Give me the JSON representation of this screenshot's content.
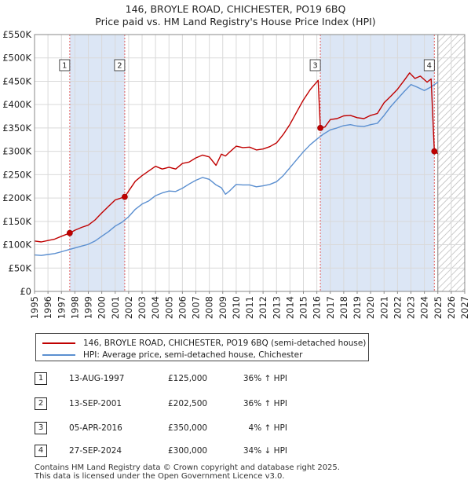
{
  "title_line1": "146, BROYLE ROAD, CHICHESTER, PO19 6BQ",
  "title_line2": "Price paid vs. HM Land Registry's House Price Index (HPI)",
  "colors": {
    "property": "#c00000",
    "hpi": "#5b8fd0",
    "shade": "#dce6f5",
    "grid": "#d9d9d9"
  },
  "chart_data": {
    "type": "line",
    "xlim": [
      1995,
      2027
    ],
    "ylim": [
      0,
      550000
    ],
    "x_ticks": [
      "1995",
      "1996",
      "1997",
      "1998",
      "1999",
      "2000",
      "2001",
      "2002",
      "2003",
      "2004",
      "2005",
      "2006",
      "2007",
      "2008",
      "2009",
      "2010",
      "2011",
      "2012",
      "2013",
      "2014",
      "2015",
      "2016",
      "2017",
      "2018",
      "2019",
      "2020",
      "2021",
      "2022",
      "2023",
      "2024",
      "2025",
      "2026",
      "2027"
    ],
    "y_ticks": [
      {
        "value": 0,
        "label": "£0"
      },
      {
        "value": 50000,
        "label": "£50K"
      },
      {
        "value": 100000,
        "label": "£100K"
      },
      {
        "value": 150000,
        "label": "£150K"
      },
      {
        "value": 200000,
        "label": "£200K"
      },
      {
        "value": 250000,
        "label": "£250K"
      },
      {
        "value": 300000,
        "label": "£300K"
      },
      {
        "value": 350000,
        "label": "£350K"
      },
      {
        "value": 400000,
        "label": "£400K"
      },
      {
        "value": 450000,
        "label": "£450K"
      },
      {
        "value": 500000,
        "label": "£500K"
      },
      {
        "value": 550000,
        "label": "£550K"
      }
    ],
    "forecast_start": 2025.0,
    "series": [
      {
        "name": "146, BROYLE ROAD, CHICHESTER, PO19 6BQ (semi-detached house)",
        "x": [
          1995.0,
          1995.5,
          1996.0,
          1996.5,
          1997.0,
          1997.62,
          1998.0,
          1998.5,
          1999.0,
          1999.5,
          2000.0,
          2000.5,
          2001.0,
          2001.71,
          2002.0,
          2002.5,
          2003.0,
          2003.5,
          2004.0,
          2004.5,
          2005.0,
          2005.5,
          2006.0,
          2006.5,
          2007.0,
          2007.5,
          2008.0,
          2008.5,
          2008.9,
          2009.2,
          2009.5,
          2010.0,
          2010.5,
          2011.0,
          2011.5,
          2012.0,
          2012.5,
          2013.0,
          2013.5,
          2014.0,
          2014.5,
          2015.0,
          2015.5,
          2016.1,
          2016.26,
          2016.6,
          2017.0,
          2017.5,
          2018.0,
          2018.5,
          2019.0,
          2019.5,
          2020.0,
          2020.5,
          2021.0,
          2021.5,
          2022.0,
          2022.5,
          2022.9,
          2023.3,
          2023.7,
          2024.2,
          2024.5,
          2024.74,
          2025.0
        ],
        "y": [
          108000,
          106000,
          109000,
          112000,
          118000,
          125000,
          131000,
          137000,
          142000,
          153000,
          168000,
          182000,
          196000,
          202500,
          215000,
          236000,
          248000,
          258000,
          268000,
          262000,
          266000,
          262000,
          274000,
          277000,
          286000,
          292000,
          288000,
          270000,
          294000,
          290000,
          298000,
          311000,
          308000,
          309000,
          303000,
          305000,
          310000,
          318000,
          336000,
          358000,
          384000,
          410000,
          432000,
          452000,
          350000,
          352000,
          368000,
          370000,
          376000,
          377000,
          372000,
          370000,
          377000,
          381000,
          404000,
          418000,
          433000,
          452000,
          468000,
          456000,
          461000,
          448000,
          455000,
          300000,
          295000
        ]
      },
      {
        "name": "HPI: Average price, semi-detached house, Chichester",
        "x": [
          1995.0,
          1995.5,
          1996.0,
          1996.5,
          1997.0,
          1997.5,
          1998.0,
          1998.5,
          1999.0,
          1999.5,
          2000.0,
          2000.5,
          2001.0,
          2001.5,
          2002.0,
          2002.5,
          2003.0,
          2003.5,
          2004.0,
          2004.5,
          2005.0,
          2005.5,
          2006.0,
          2006.5,
          2007.0,
          2007.5,
          2008.0,
          2008.5,
          2008.9,
          2009.2,
          2009.5,
          2010.0,
          2010.5,
          2011.0,
          2011.5,
          2012.0,
          2012.5,
          2013.0,
          2013.5,
          2014.0,
          2014.5,
          2015.0,
          2015.5,
          2016.0,
          2016.5,
          2017.0,
          2017.5,
          2018.0,
          2018.5,
          2019.0,
          2019.5,
          2020.0,
          2020.5,
          2021.0,
          2021.5,
          2022.0,
          2022.5,
          2023.0,
          2023.5,
          2024.0,
          2024.5,
          2025.0
        ],
        "y": [
          78000,
          77000,
          79000,
          81000,
          85000,
          89000,
          93000,
          97000,
          101000,
          108000,
          118000,
          128000,
          140000,
          148000,
          160000,
          176000,
          187000,
          194000,
          205000,
          211000,
          215000,
          214000,
          221000,
          230000,
          238000,
          244000,
          240000,
          228000,
          222000,
          208000,
          215000,
          229000,
          228000,
          228000,
          224000,
          226000,
          229000,
          235000,
          248000,
          265000,
          282000,
          299000,
          314000,
          326000,
          337000,
          346000,
          350000,
          355000,
          357000,
          354000,
          353000,
          357000,
          360000,
          377000,
          396000,
          412000,
          428000,
          443000,
          437000,
          430000,
          438000,
          448000
        ]
      }
    ],
    "sales": [
      {
        "n": "1",
        "x": 1997.62,
        "y": 125000
      },
      {
        "n": "2",
        "x": 2001.71,
        "y": 202500
      },
      {
        "n": "3",
        "x": 2016.26,
        "y": 350000
      },
      {
        "n": "4",
        "x": 2024.74,
        "y": 300000
      }
    ]
  },
  "legend": [
    {
      "label": "146, BROYLE ROAD, CHICHESTER, PO19 6BQ (semi-detached house)"
    },
    {
      "label": "HPI: Average price, semi-detached house, Chichester"
    }
  ],
  "transactions": [
    {
      "n": "1",
      "date": "13-AUG-1997",
      "price": "£125,000",
      "hpi": "36% ↑ HPI"
    },
    {
      "n": "2",
      "date": "13-SEP-2001",
      "price": "£202,500",
      "hpi": "36% ↑ HPI"
    },
    {
      "n": "3",
      "date": "05-APR-2016",
      "price": "£350,000",
      "hpi": "4% ↑ HPI"
    },
    {
      "n": "4",
      "date": "27-SEP-2024",
      "price": "£300,000",
      "hpi": "34% ↓ HPI"
    }
  ],
  "footer_line1": "Contains HM Land Registry data © Crown copyright and database right 2025.",
  "footer_line2": "This data is licensed under the Open Government Licence v3.0."
}
